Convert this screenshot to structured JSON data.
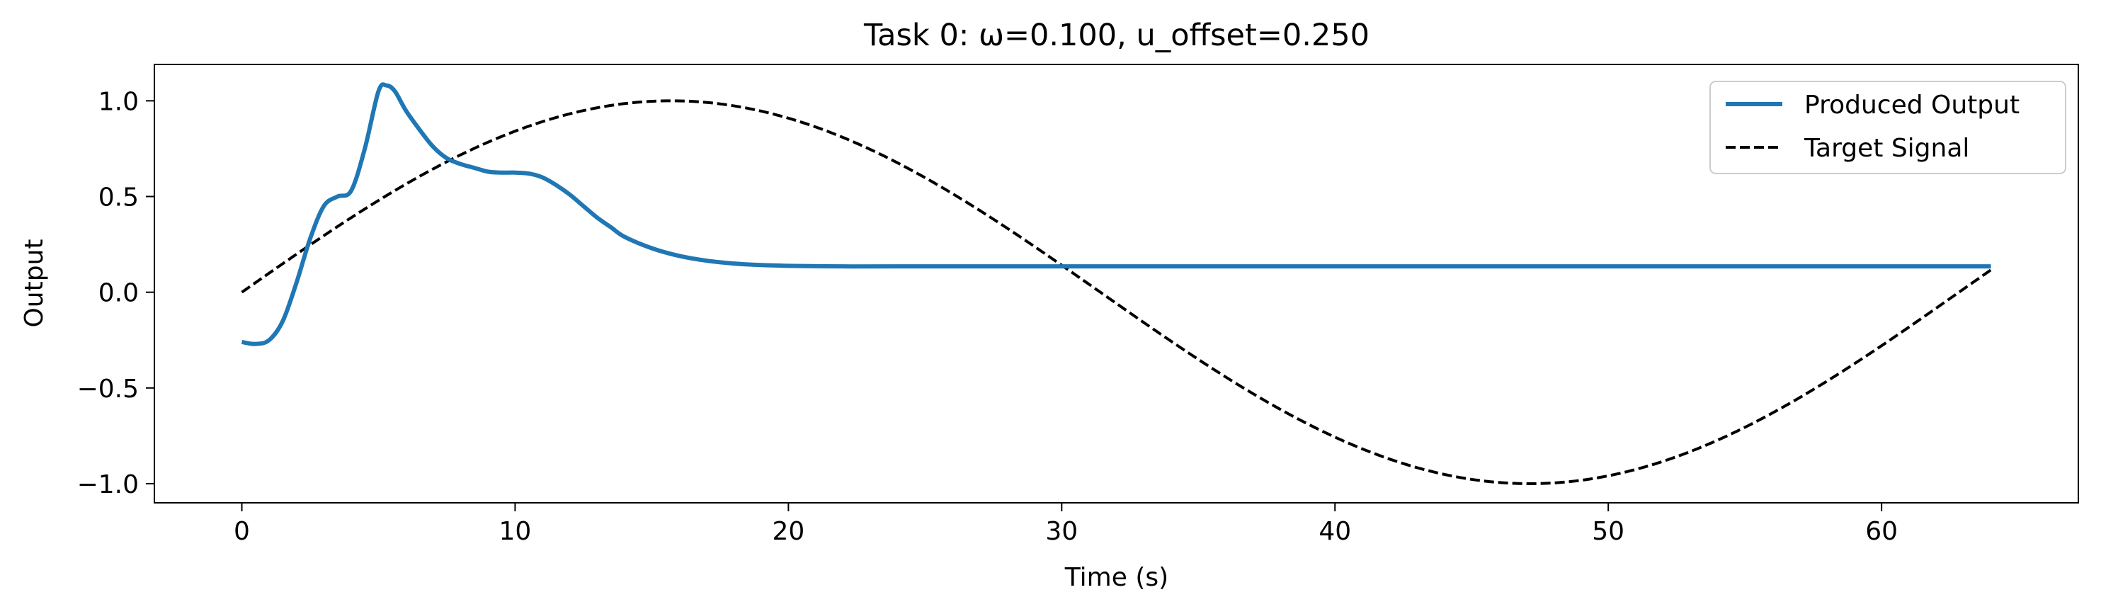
{
  "chart_data": {
    "type": "line",
    "title": "Task 0: ω=0.100, u_offset=0.250",
    "xlabel": "Time (s)",
    "ylabel": "Output",
    "xlim": [
      -3.2,
      67.2
    ],
    "ylim": [
      -1.1,
      1.19
    ],
    "x_ticks": [
      0,
      10,
      20,
      30,
      40,
      50,
      60
    ],
    "x_tick_labels": [
      "0",
      "10",
      "20",
      "30",
      "40",
      "50",
      "60"
    ],
    "y_ticks": [
      1.0,
      0.5,
      0.0,
      -0.5,
      -1.0
    ],
    "y_tick_labels": [
      "1.0",
      "0.5",
      "0.0",
      "−0.5",
      "−1.0"
    ],
    "grid": false,
    "legend_position": "top-right",
    "series": [
      {
        "name": "Produced Output",
        "style": "solid",
        "color": "#1f77b4",
        "points": [
          [
            0,
            -0.26
          ],
          [
            0.5,
            -0.27
          ],
          [
            1.0,
            -0.25
          ],
          [
            1.5,
            -0.15
          ],
          [
            2.0,
            0.05
          ],
          [
            2.5,
            0.28
          ],
          [
            3.0,
            0.45
          ],
          [
            3.5,
            0.5
          ],
          [
            4.0,
            0.53
          ],
          [
            4.5,
            0.75
          ],
          [
            5.0,
            1.05
          ],
          [
            5.3,
            1.08
          ],
          [
            5.6,
            1.05
          ],
          [
            6.0,
            0.95
          ],
          [
            6.5,
            0.85
          ],
          [
            7.0,
            0.76
          ],
          [
            7.5,
            0.7
          ],
          [
            8.0,
            0.67
          ],
          [
            8.5,
            0.65
          ],
          [
            9.0,
            0.63
          ],
          [
            9.5,
            0.625
          ],
          [
            10.0,
            0.625
          ],
          [
            10.5,
            0.62
          ],
          [
            11.0,
            0.6
          ],
          [
            11.5,
            0.56
          ],
          [
            12.0,
            0.51
          ],
          [
            12.5,
            0.45
          ],
          [
            13.0,
            0.39
          ],
          [
            13.5,
            0.34
          ],
          [
            14.0,
            0.29
          ],
          [
            15.0,
            0.23
          ],
          [
            16.0,
            0.19
          ],
          [
            17.0,
            0.165
          ],
          [
            18.0,
            0.15
          ],
          [
            19.0,
            0.142
          ],
          [
            20.0,
            0.138
          ],
          [
            21.0,
            0.136
          ],
          [
            22.0,
            0.135
          ],
          [
            24.0,
            0.135
          ],
          [
            30.0,
            0.135
          ],
          [
            40.0,
            0.135
          ],
          [
            50.0,
            0.135
          ],
          [
            60.0,
            0.135
          ],
          [
            64.0,
            0.135
          ]
        ]
      },
      {
        "name": "Target Signal",
        "style": "dashed",
        "color": "#000000",
        "function": "sin(0.1*t)",
        "omega": 0.1,
        "x_range": [
          0,
          64
        ]
      }
    ]
  }
}
